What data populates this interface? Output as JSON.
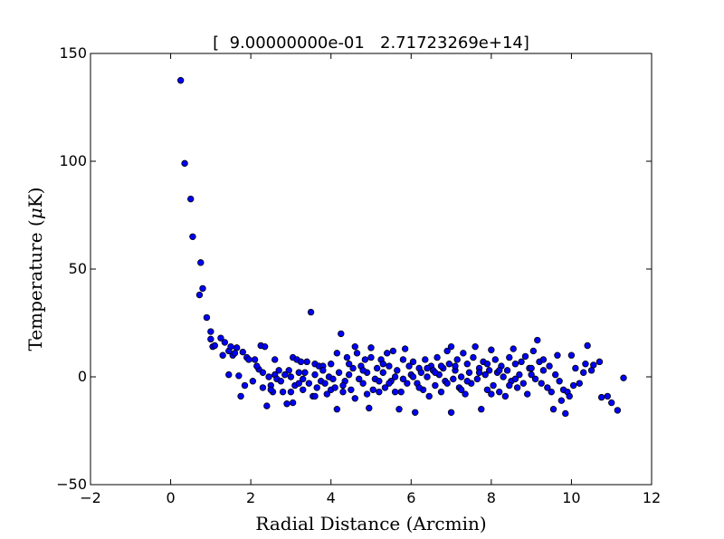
{
  "chart_data": {
    "type": "scatter",
    "title": "[  9.00000000e-01   2.71723269e+14]",
    "xlabel": "Radial Distance (Arcmin)",
    "ylabel_pre": "Temperature (",
    "ylabel_mu": "μ",
    "ylabel_post": "K)",
    "xlim": [
      -2,
      12
    ],
    "ylim": [
      -50,
      150
    ],
    "xticks": [
      -2,
      0,
      2,
      4,
      6,
      8,
      10,
      12
    ],
    "yticks": [
      -50,
      0,
      50,
      100,
      150
    ],
    "xtick_labels": [
      "−2",
      "0",
      "2",
      "4",
      "6",
      "8",
      "10",
      "12"
    ],
    "ytick_labels": [
      "−50",
      "0",
      "50",
      "100",
      "150"
    ],
    "grid": false,
    "marker_color": "#0000ff",
    "marker_edge": "#000000",
    "series": [
      {
        "points": [
          [
            0.25,
            137.5
          ],
          [
            0.35,
            99
          ],
          [
            0.5,
            82.5
          ],
          [
            0.55,
            65
          ],
          [
            0.75,
            53
          ],
          [
            0.8,
            41
          ],
          [
            0.72,
            38
          ],
          [
            0.9,
            27.5
          ],
          [
            1.0,
            21
          ],
          [
            1.0,
            17.5
          ],
          [
            1.05,
            14
          ],
          [
            1.1,
            14.5
          ],
          [
            1.25,
            18
          ],
          [
            1.35,
            16
          ],
          [
            1.45,
            12
          ],
          [
            1.5,
            14
          ],
          [
            1.55,
            10
          ],
          [
            1.6,
            11
          ],
          [
            1.65,
            13.5
          ],
          [
            1.3,
            10
          ],
          [
            1.45,
            1
          ],
          [
            1.7,
            0.5
          ],
          [
            1.75,
            -9
          ],
          [
            1.8,
            11.5
          ],
          [
            1.9,
            9
          ],
          [
            1.95,
            8
          ],
          [
            1.85,
            -4
          ],
          [
            2.05,
            -2
          ],
          [
            2.1,
            8
          ],
          [
            2.2,
            3.5
          ],
          [
            2.25,
            14.5
          ],
          [
            2.35,
            14
          ],
          [
            2.3,
            2
          ],
          [
            2.3,
            -5
          ],
          [
            2.4,
            -13.5
          ],
          [
            2.45,
            0
          ],
          [
            2.5,
            -4
          ],
          [
            2.55,
            -7
          ],
          [
            2.6,
            8
          ],
          [
            2.6,
            1
          ],
          [
            2.65,
            -1
          ],
          [
            2.7,
            3
          ],
          [
            2.75,
            -2
          ],
          [
            2.8,
            -7
          ],
          [
            2.85,
            1
          ],
          [
            2.9,
            -12.5
          ],
          [
            2.95,
            3
          ],
          [
            3.0,
            -7
          ],
          [
            3.05,
            9
          ],
          [
            3.05,
            -12
          ],
          [
            3.1,
            -4
          ],
          [
            3.15,
            8
          ],
          [
            3.2,
            2
          ],
          [
            3.25,
            7
          ],
          [
            3.3,
            -1
          ],
          [
            3.3,
            -6
          ],
          [
            3.35,
            2
          ],
          [
            3.4,
            7
          ],
          [
            3.45,
            -3
          ],
          [
            3.5,
            30
          ],
          [
            3.55,
            -9
          ],
          [
            3.6,
            6
          ],
          [
            3.6,
            1
          ],
          [
            3.65,
            -5
          ],
          [
            3.7,
            5
          ],
          [
            3.75,
            -2
          ],
          [
            3.8,
            5
          ],
          [
            3.8,
            3
          ],
          [
            3.85,
            -3
          ],
          [
            3.9,
            -8
          ],
          [
            3.95,
            0
          ],
          [
            4.0,
            6
          ],
          [
            4.0,
            -6
          ],
          [
            4.05,
            -1
          ],
          [
            4.1,
            -5
          ],
          [
            4.15,
            11
          ],
          [
            4.15,
            -15
          ],
          [
            4.2,
            2
          ],
          [
            4.25,
            20
          ],
          [
            4.3,
            -7
          ],
          [
            4.35,
            -2
          ],
          [
            4.4,
            9
          ],
          [
            4.45,
            1
          ],
          [
            4.5,
            -6
          ],
          [
            4.55,
            4
          ],
          [
            4.6,
            14
          ],
          [
            4.6,
            -10
          ],
          [
            4.65,
            11
          ],
          [
            4.7,
            -1
          ],
          [
            4.75,
            5
          ],
          [
            4.8,
            -3
          ],
          [
            4.85,
            8
          ],
          [
            4.9,
            2
          ],
          [
            4.95,
            -14.5
          ],
          [
            5.0,
            13.5
          ],
          [
            5.0,
            9
          ],
          [
            5.05,
            -6
          ],
          [
            5.1,
            -1
          ],
          [
            5.15,
            4
          ],
          [
            5.2,
            -7
          ],
          [
            5.25,
            8
          ],
          [
            5.3,
            2
          ],
          [
            5.35,
            -5
          ],
          [
            5.4,
            11
          ],
          [
            5.45,
            5
          ],
          [
            5.5,
            -2
          ],
          [
            5.55,
            12
          ],
          [
            5.6,
            0
          ],
          [
            5.65,
            3
          ],
          [
            5.7,
            -15
          ],
          [
            5.75,
            -7
          ],
          [
            5.8,
            8
          ],
          [
            5.85,
            13
          ],
          [
            5.9,
            -3
          ],
          [
            5.95,
            5
          ],
          [
            6.0,
            1
          ],
          [
            6.05,
            7
          ],
          [
            6.1,
            -16.5
          ],
          [
            6.15,
            -3
          ],
          [
            6.2,
            4
          ],
          [
            6.25,
            2
          ],
          [
            6.3,
            -6
          ],
          [
            6.35,
            8
          ],
          [
            6.4,
            0
          ],
          [
            6.45,
            -9
          ],
          [
            6.5,
            5
          ],
          [
            6.55,
            3
          ],
          [
            6.6,
            -4
          ],
          [
            6.65,
            9
          ],
          [
            6.7,
            1
          ],
          [
            6.75,
            -7
          ],
          [
            6.8,
            4
          ],
          [
            6.85,
            -2
          ],
          [
            6.9,
            12
          ],
          [
            6.95,
            6
          ],
          [
            7.0,
            -16.5
          ],
          [
            7.0,
            14
          ],
          [
            7.05,
            -1
          ],
          [
            7.1,
            3
          ],
          [
            7.15,
            8
          ],
          [
            7.2,
            -5
          ],
          [
            7.25,
            0
          ],
          [
            7.3,
            11
          ],
          [
            7.35,
            -8
          ],
          [
            7.4,
            6
          ],
          [
            7.45,
            2
          ],
          [
            7.5,
            -3
          ],
          [
            7.55,
            9
          ],
          [
            7.6,
            14
          ],
          [
            7.65,
            -1
          ],
          [
            7.7,
            4
          ],
          [
            7.75,
            -15
          ],
          [
            7.8,
            7
          ],
          [
            7.85,
            1
          ],
          [
            7.9,
            -6
          ],
          [
            7.95,
            3
          ],
          [
            8.0,
            12.5
          ],
          [
            8.05,
            -4
          ],
          [
            8.1,
            8
          ],
          [
            8.15,
            2
          ],
          [
            8.2,
            -7
          ],
          [
            8.25,
            5
          ],
          [
            8.3,
            0
          ],
          [
            8.35,
            -9
          ],
          [
            8.4,
            3
          ],
          [
            8.45,
            9
          ],
          [
            8.5,
            -2
          ],
          [
            8.55,
            13
          ],
          [
            8.6,
            6
          ],
          [
            8.65,
            -5
          ],
          [
            8.7,
            1
          ],
          [
            8.75,
            7
          ],
          [
            8.8,
            -3
          ],
          [
            8.85,
            9.5
          ],
          [
            8.9,
            -8
          ],
          [
            8.95,
            4
          ],
          [
            9.0,
            1
          ],
          [
            9.05,
            12
          ],
          [
            9.1,
            -1
          ],
          [
            9.15,
            17
          ],
          [
            9.2,
            7
          ],
          [
            9.25,
            -3
          ],
          [
            9.3,
            3
          ],
          [
            9.4,
            -5
          ],
          [
            9.45,
            5
          ],
          [
            9.5,
            -7
          ],
          [
            9.55,
            -15
          ],
          [
            9.6,
            1
          ],
          [
            9.65,
            10
          ],
          [
            9.7,
            -2
          ],
          [
            9.75,
            -11
          ],
          [
            9.8,
            -6
          ],
          [
            9.85,
            -17
          ],
          [
            9.9,
            -7
          ],
          [
            9.95,
            -9
          ],
          [
            10.0,
            10
          ],
          [
            10.05,
            -4
          ],
          [
            10.1,
            4
          ],
          [
            10.2,
            -3
          ],
          [
            10.3,
            2
          ],
          [
            10.35,
            6
          ],
          [
            10.4,
            14.5
          ],
          [
            10.5,
            3
          ],
          [
            10.55,
            5.5
          ],
          [
            10.7,
            7
          ],
          [
            10.75,
            -9.5
          ],
          [
            10.9,
            -9
          ],
          [
            11.0,
            -12
          ],
          [
            11.15,
            -15.5
          ],
          [
            11.3,
            -0.5
          ],
          [
            5.2,
            -2
          ],
          [
            6.6,
            2
          ],
          [
            7.4,
            -2
          ],
          [
            8.2,
            3
          ],
          [
            4.3,
            -4
          ],
          [
            5.8,
            -1
          ],
          [
            7.9,
            6
          ],
          [
            6.2,
            -5
          ],
          [
            3.6,
            -9
          ],
          [
            2.15,
            5
          ],
          [
            2.5,
            -6
          ],
          [
            4.9,
            -8
          ],
          [
            6.9,
            -3
          ],
          [
            8.6,
            -1
          ],
          [
            9.3,
            8
          ],
          [
            5.3,
            6
          ],
          [
            7.1,
            5
          ],
          [
            6.4,
            4
          ],
          [
            8.0,
            -8
          ],
          [
            5.6,
            -7
          ],
          [
            4.8,
            3
          ],
          [
            3.0,
            0
          ],
          [
            7.7,
            2
          ],
          [
            6.05,
            0
          ],
          [
            8.45,
            -4
          ],
          [
            9.0,
            4
          ],
          [
            5.45,
            -3
          ],
          [
            6.75,
            5
          ],
          [
            7.25,
            -6
          ],
          [
            4.45,
            6
          ],
          [
            3.2,
            -3
          ]
        ]
      }
    ]
  }
}
